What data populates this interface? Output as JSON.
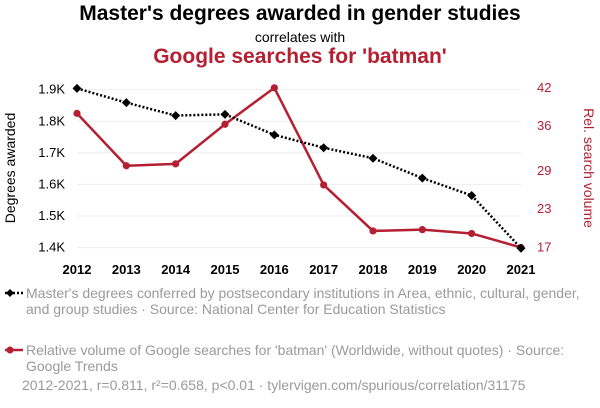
{
  "title": "Master's degrees awarded in gender studies",
  "subtitle": "correlates with",
  "title2": "Google searches for 'batman'",
  "legend": {
    "series1": "Master's degrees conferred by postsecondary institutions in Area, ethnic, cultural, gender, and group studies · Source: National Center for Education Statistics",
    "series2": "Relative volume of Google searches for 'batman' (Worldwide, without quotes) · Source: Google Trends"
  },
  "footer": "2012-2021, r=0.811, r²=0.658, p<0.01 · tylervigen.com/spurious/correlation/31175",
  "colors": {
    "series1": "#000000",
    "series2": "#b51f32",
    "grid": "#eeeeee"
  },
  "chart_data": {
    "type": "line",
    "x": [
      2012,
      2013,
      2014,
      2015,
      2016,
      2017,
      2018,
      2019,
      2020,
      2021
    ],
    "x_ticks": [
      "2012",
      "2013",
      "2014",
      "2015",
      "2016",
      "2017",
      "2018",
      "2019",
      "2020",
      "2021"
    ],
    "ylabel": "Degrees awarded",
    "ylabel_right": "Rel. search volume",
    "ylim_left": [
      1.386,
      1.918
    ],
    "ylim_right": [
      16.3,
      42.6
    ],
    "yticks_left": [
      "1.4K",
      "1.5K",
      "1.6K",
      "1.7K",
      "1.8K",
      "1.9K"
    ],
    "yticks_left_values": [
      1.4,
      1.5,
      1.6,
      1.7,
      1.8,
      1.9
    ],
    "yticks_right": [
      "17",
      "23",
      "29",
      "36",
      "42"
    ],
    "yticks_right_values": [
      17,
      23,
      29,
      36,
      42
    ],
    "series": [
      {
        "name": "Master's degrees conferred by postsecondary institutions in Area, ethnic, cultural, gender, and group studies",
        "axis": "left",
        "style": "dotted",
        "marker": "diamond",
        "values": [
          1.904,
          1.859,
          1.818,
          1.822,
          1.757,
          1.716,
          1.683,
          1.62,
          1.565,
          1.398
        ]
      },
      {
        "name": "Relative volume of Google searches for 'batman'",
        "axis": "right",
        "style": "solid",
        "marker": "circle",
        "values": [
          38,
          29.8,
          30.1,
          36.3,
          42,
          26.8,
          19.6,
          19.8,
          19.2,
          17
        ]
      }
    ]
  }
}
